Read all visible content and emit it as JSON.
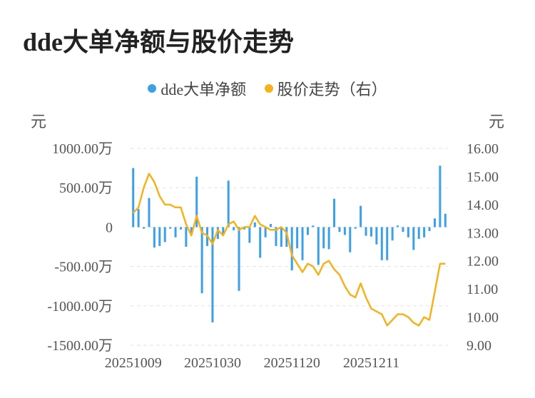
{
  "title": "dde大单净额与股价走势",
  "legend": [
    {
      "label": "dde大单净额",
      "color": "#3ba1e6"
    },
    {
      "label": "股价走势（右）",
      "color": "#f5b21c"
    }
  ],
  "chart_data": {
    "type": "bar+line",
    "left_unit": "元",
    "right_unit": "元",
    "y_left": {
      "min": -1500,
      "max": 1000,
      "ticks": [
        {
          "v": 1000,
          "label": "1000.00万"
        },
        {
          "v": 500,
          "label": "500.00万"
        },
        {
          "v": 0,
          "label": "0"
        },
        {
          "v": -500,
          "label": "-500.00万"
        },
        {
          "v": -1000,
          "label": "-1000.00万"
        },
        {
          "v": -1500,
          "label": "-1500.00万"
        }
      ]
    },
    "y_right": {
      "min": 9.0,
      "max": 16.0,
      "ticks": [
        {
          "v": 16,
          "label": "16.00"
        },
        {
          "v": 15,
          "label": "15.00"
        },
        {
          "v": 14,
          "label": "14.00"
        },
        {
          "v": 13,
          "label": "13.00"
        },
        {
          "v": 12,
          "label": "12.00"
        },
        {
          "v": 11,
          "label": "11.00"
        },
        {
          "v": 10,
          "label": "10.00"
        },
        {
          "v": 9,
          "label": "9.00"
        }
      ]
    },
    "x_labels": [
      {
        "index": 0,
        "label": "20251009"
      },
      {
        "index": 15,
        "label": "20251030"
      },
      {
        "index": 30,
        "label": "20251120"
      },
      {
        "index": 45,
        "label": "20251211"
      }
    ],
    "bar_series": {
      "name": "dde大单净额",
      "color": "#3ba1e6",
      "values": [
        750,
        230,
        -20,
        370,
        -260,
        -240,
        -190,
        -20,
        -130,
        -30,
        -250,
        -80,
        640,
        -840,
        -240,
        -1210,
        -150,
        -100,
        590,
        -40,
        -810,
        -30,
        -200,
        60,
        -390,
        -130,
        40,
        -240,
        -250,
        -250,
        -550,
        -270,
        -420,
        -100,
        20,
        -480,
        -270,
        -280,
        360,
        -60,
        -100,
        -320,
        -20,
        270,
        -110,
        -120,
        -220,
        -420,
        -420,
        -170,
        20,
        -60,
        -130,
        -290,
        -150,
        -130,
        -50,
        110,
        780,
        170
      ]
    },
    "line_series": {
      "name": "股价走势（右）",
      "color": "#f5b21c",
      "values": [
        13.7,
        13.9,
        14.6,
        15.1,
        14.8,
        14.3,
        14.0,
        14.0,
        13.9,
        13.9,
        13.3,
        12.9,
        13.6,
        13.0,
        12.9,
        12.6,
        13.1,
        12.9,
        13.3,
        13.4,
        13.1,
        13.2,
        13.2,
        13.6,
        13.3,
        13.2,
        13.1,
        13.1,
        13.2,
        13.0,
        12.2,
        11.9,
        11.6,
        11.9,
        11.8,
        11.5,
        11.9,
        12.0,
        11.7,
        11.5,
        11.1,
        10.8,
        10.7,
        11.2,
        10.7,
        10.3,
        10.2,
        10.1,
        9.7,
        9.9,
        10.1,
        10.1,
        10.0,
        9.8,
        9.7,
        10.0,
        9.9,
        10.9,
        11.9,
        11.9
      ]
    }
  }
}
